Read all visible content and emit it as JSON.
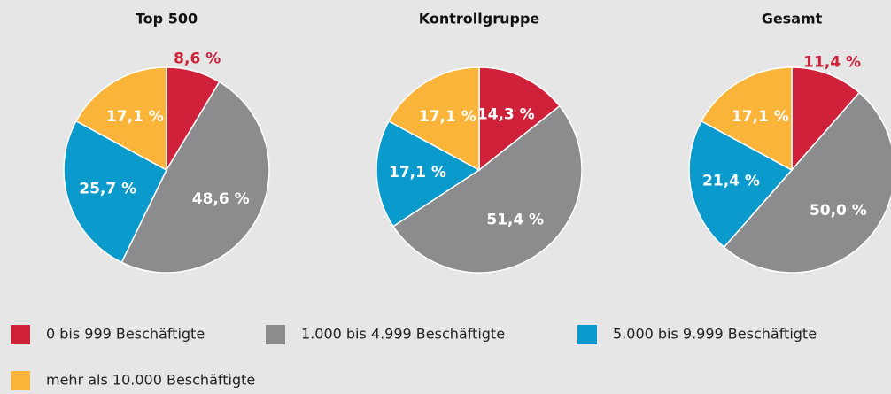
{
  "chart_data": [
    {
      "type": "pie",
      "title": "Top 500",
      "categories": [
        "0 bis 999 Beschäftigte",
        "1.000 bis 4.999 Beschäftigte",
        "5.000 bis 9.999 Beschäftigte",
        "mehr als 10.000 Beschäftigte"
      ],
      "values": [
        8.6,
        48.6,
        25.7,
        17.1
      ],
      "value_labels": [
        "8,6 %",
        "48,6 %",
        "25,7 %",
        "17,1 %"
      ],
      "colors": [
        "#d0213a",
        "#8c8c8f",
        "#0a9acb",
        "#fbb43a"
      ]
    },
    {
      "type": "pie",
      "title": "Kontrollgruppe",
      "categories": [
        "0 bis 999 Beschäftigte",
        "1.000 bis 4.999 Beschäftigte",
        "5.000 bis 9.999 Beschäftigte",
        "mehr als 10.000 Beschäftigte"
      ],
      "values": [
        14.3,
        51.4,
        17.1,
        17.1
      ],
      "value_labels": [
        "14,3 %",
        "51,4 %",
        "17,1 %",
        "17,1 %"
      ],
      "colors": [
        "#d0213a",
        "#8c8c8f",
        "#0a9acb",
        "#fbb43a"
      ]
    },
    {
      "type": "pie",
      "title": "Gesamt",
      "categories": [
        "0 bis 999 Beschäftigte",
        "1.000 bis 4.999 Beschäftigte",
        "5.000 bis 9.999 Beschäftigte",
        "mehr als 10.000 Beschäftigte"
      ],
      "values": [
        11.4,
        50.0,
        21.4,
        17.1
      ],
      "value_labels": [
        "11,4 %",
        "50,0 %",
        "21,4 %",
        "17,1 %"
      ],
      "colors": [
        "#d0213a",
        "#8c8c8f",
        "#0a9acb",
        "#fbb43a"
      ]
    }
  ]
}
